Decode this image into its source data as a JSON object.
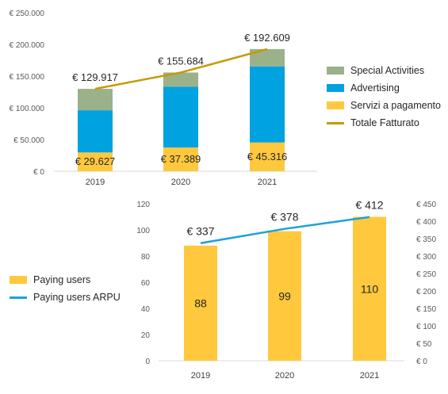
{
  "chart_data": [
    {
      "type": "bar",
      "stacked": true,
      "categories": [
        "2019",
        "2020",
        "2021"
      ],
      "series": [
        {
          "name": "Servizi a pagamento",
          "values": [
            29627,
            37389,
            45316
          ],
          "labels": [
            "€ 29.627",
            "€ 37.389",
            "€ 45.316"
          ],
          "color": "#ffc83d"
        },
        {
          "name": "Advertising",
          "values": [
            66500,
            96000,
            120000
          ],
          "color": "#00a2e0"
        },
        {
          "name": "Special Activities",
          "values": [
            33790,
            22295,
            27293
          ],
          "color": "#9bb18a"
        }
      ],
      "line": {
        "name": "Totale Fatturato",
        "values": [
          129917,
          155684,
          192609
        ],
        "labels": [
          "€ 129.917",
          "€ 155.684",
          "€ 192.609"
        ],
        "color": "#c49a00"
      },
      "ylim": [
        0,
        250000
      ],
      "yticks": [
        "€ 0",
        "€ 50.000",
        "€ 100.000",
        "€ 150.000",
        "€ 200.000",
        "€ 250.000"
      ],
      "legend": [
        "Special Activities",
        "Advertising",
        "Servizi a pagamento",
        "Totale Fatturato"
      ],
      "legend_position": "right"
    },
    {
      "type": "bar",
      "categories": [
        "2019",
        "2020",
        "2021"
      ],
      "series": [
        {
          "name": "Paying users",
          "values": [
            88,
            99,
            110
          ],
          "labels": [
            "88",
            "99",
            "110"
          ],
          "color": "#ffc83d"
        }
      ],
      "line": {
        "name": "Paying users ARPU",
        "values": [
          337,
          378,
          412
        ],
        "labels": [
          "€ 337",
          "€ 378",
          "€ 412"
        ],
        "color": "#1aa3d9",
        "axis": "right"
      },
      "ylim": [
        0,
        120
      ],
      "yticks": [
        "0",
        "20",
        "40",
        "60",
        "80",
        "100",
        "120"
      ],
      "y2lim": [
        0,
        450
      ],
      "y2ticks": [
        "€ 0",
        "€ 50",
        "€ 100",
        "€ 150",
        "€ 200",
        "€ 250",
        "€ 300",
        "€ 350",
        "€ 400",
        "€ 450"
      ],
      "legend": [
        "Paying users",
        "Paying users ARPU"
      ],
      "legend_position": "left"
    }
  ]
}
